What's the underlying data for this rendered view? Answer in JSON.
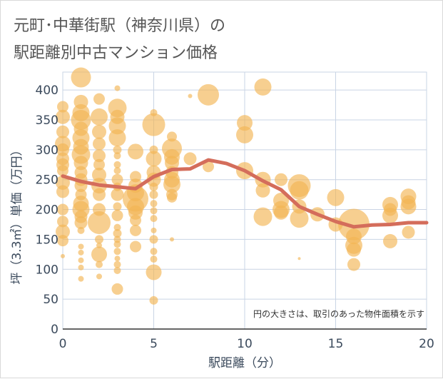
{
  "chart_data": {
    "type": "scatter",
    "title_lines": [
      "元町･中華街駅（神奈川県）の",
      "駅距離別中古マンション価格"
    ],
    "xlabel": "駅距離（分）",
    "ylabel": "坪（3.3㎡）単価（万円）",
    "xlim": [
      0,
      20
    ],
    "ylim": [
      0,
      430
    ],
    "x_ticks": [
      "0",
      "5",
      "10",
      "15",
      "20"
    ],
    "y_ticks": [
      "0",
      "50",
      "100",
      "150",
      "200",
      "250",
      "300",
      "350",
      "400"
    ],
    "x_tick_values": [
      0,
      5,
      10,
      15,
      20
    ],
    "y_tick_values": [
      0,
      50,
      100,
      150,
      200,
      250,
      300,
      350,
      400
    ],
    "grid": true,
    "annotation": "円の大きさは、取引のあった物件面積を示す",
    "bubble_color": "#f2b554",
    "line_color": "#d46d5b",
    "bubbles": [
      {
        "x": 0,
        "y": 372,
        "s": 8
      },
      {
        "x": 0,
        "y": 355,
        "s": 10
      },
      {
        "x": 0,
        "y": 330,
        "s": 9
      },
      {
        "x": 0,
        "y": 310,
        "s": 11
      },
      {
        "x": 0,
        "y": 300,
        "s": 9
      },
      {
        "x": 0,
        "y": 285,
        "s": 9
      },
      {
        "x": 0,
        "y": 275,
        "s": 9
      },
      {
        "x": 0,
        "y": 265,
        "s": 8
      },
      {
        "x": 0,
        "y": 245,
        "s": 10
      },
      {
        "x": 0,
        "y": 230,
        "s": 9
      },
      {
        "x": 0,
        "y": 200,
        "s": 8
      },
      {
        "x": 0,
        "y": 180,
        "s": 8
      },
      {
        "x": 0,
        "y": 163,
        "s": 10
      },
      {
        "x": 0,
        "y": 148,
        "s": 8
      },
      {
        "x": 0,
        "y": 122,
        "s": 3
      },
      {
        "x": 1,
        "y": 421,
        "s": 14
      },
      {
        "x": 1,
        "y": 380,
        "s": 10
      },
      {
        "x": 1,
        "y": 362,
        "s": 12
      },
      {
        "x": 1,
        "y": 350,
        "s": 14
      },
      {
        "x": 1,
        "y": 335,
        "s": 10
      },
      {
        "x": 1,
        "y": 320,
        "s": 12
      },
      {
        "x": 1,
        "y": 305,
        "s": 11
      },
      {
        "x": 1,
        "y": 292,
        "s": 13
      },
      {
        "x": 1,
        "y": 278,
        "s": 10
      },
      {
        "x": 1,
        "y": 262,
        "s": 9
      },
      {
        "x": 1,
        "y": 250,
        "s": 9
      },
      {
        "x": 1,
        "y": 240,
        "s": 9
      },
      {
        "x": 1,
        "y": 225,
        "s": 8
      },
      {
        "x": 1,
        "y": 210,
        "s": 11
      },
      {
        "x": 1,
        "y": 200,
        "s": 12
      },
      {
        "x": 1,
        "y": 188,
        "s": 9
      },
      {
        "x": 1,
        "y": 178,
        "s": 9
      },
      {
        "x": 1,
        "y": 165,
        "s": 5
      },
      {
        "x": 1,
        "y": 138,
        "s": 4
      },
      {
        "x": 1,
        "y": 128,
        "s": 4
      },
      {
        "x": 1,
        "y": 115,
        "s": 4
      },
      {
        "x": 1,
        "y": 103,
        "s": 4
      },
      {
        "x": 1,
        "y": 84,
        "s": 4
      },
      {
        "x": 2,
        "y": 385,
        "s": 8
      },
      {
        "x": 2,
        "y": 355,
        "s": 12
      },
      {
        "x": 2,
        "y": 330,
        "s": 10
      },
      {
        "x": 2,
        "y": 310,
        "s": 9
      },
      {
        "x": 2,
        "y": 290,
        "s": 9
      },
      {
        "x": 2,
        "y": 275,
        "s": 8
      },
      {
        "x": 2,
        "y": 258,
        "s": 10
      },
      {
        "x": 2,
        "y": 240,
        "s": 11
      },
      {
        "x": 2,
        "y": 225,
        "s": 9
      },
      {
        "x": 2,
        "y": 200,
        "s": 9
      },
      {
        "x": 2,
        "y": 178,
        "s": 16
      },
      {
        "x": 2,
        "y": 150,
        "s": 6
      },
      {
        "x": 2,
        "y": 140,
        "s": 4
      },
      {
        "x": 2,
        "y": 125,
        "s": 11
      },
      {
        "x": 2,
        "y": 108,
        "s": 5
      },
      {
        "x": 2,
        "y": 88,
        "s": 4
      },
      {
        "x": 3,
        "y": 403,
        "s": 4
      },
      {
        "x": 3,
        "y": 370,
        "s": 13
      },
      {
        "x": 3,
        "y": 355,
        "s": 10
      },
      {
        "x": 3,
        "y": 340,
        "s": 12
      },
      {
        "x": 3,
        "y": 320,
        "s": 12
      },
      {
        "x": 3,
        "y": 300,
        "s": 6
      },
      {
        "x": 3,
        "y": 290,
        "s": 5
      },
      {
        "x": 3,
        "y": 275,
        "s": 5
      },
      {
        "x": 3,
        "y": 265,
        "s": 5
      },
      {
        "x": 3,
        "y": 250,
        "s": 8
      },
      {
        "x": 3,
        "y": 238,
        "s": 6
      },
      {
        "x": 3,
        "y": 225,
        "s": 9
      },
      {
        "x": 3,
        "y": 205,
        "s": 6
      },
      {
        "x": 3,
        "y": 190,
        "s": 8
      },
      {
        "x": 3,
        "y": 170,
        "s": 5
      },
      {
        "x": 3,
        "y": 160,
        "s": 6
      },
      {
        "x": 3,
        "y": 150,
        "s": 5
      },
      {
        "x": 3,
        "y": 142,
        "s": 5
      },
      {
        "x": 3,
        "y": 130,
        "s": 5
      },
      {
        "x": 3,
        "y": 118,
        "s": 4
      },
      {
        "x": 3,
        "y": 108,
        "s": 5
      },
      {
        "x": 3,
        "y": 98,
        "s": 5
      },
      {
        "x": 3,
        "y": 67,
        "s": 8
      },
      {
        "x": 4,
        "y": 297,
        "s": 11
      },
      {
        "x": 4,
        "y": 255,
        "s": 8
      },
      {
        "x": 4,
        "y": 240,
        "s": 10
      },
      {
        "x": 4,
        "y": 228,
        "s": 12
      },
      {
        "x": 4,
        "y": 218,
        "s": 18
      },
      {
        "x": 4,
        "y": 205,
        "s": 12
      },
      {
        "x": 4,
        "y": 195,
        "s": 10
      },
      {
        "x": 4,
        "y": 182,
        "s": 8
      },
      {
        "x": 4,
        "y": 165,
        "s": 8
      },
      {
        "x": 4,
        "y": 138,
        "s": 8
      },
      {
        "x": 5,
        "y": 362,
        "s": 5
      },
      {
        "x": 5,
        "y": 342,
        "s": 16
      },
      {
        "x": 5,
        "y": 300,
        "s": 6
      },
      {
        "x": 5,
        "y": 285,
        "s": 11
      },
      {
        "x": 5,
        "y": 262,
        "s": 10
      },
      {
        "x": 5,
        "y": 250,
        "s": 10
      },
      {
        "x": 5,
        "y": 238,
        "s": 6
      },
      {
        "x": 5,
        "y": 225,
        "s": 6
      },
      {
        "x": 5,
        "y": 210,
        "s": 5
      },
      {
        "x": 5,
        "y": 198,
        "s": 5
      },
      {
        "x": 5,
        "y": 185,
        "s": 5
      },
      {
        "x": 5,
        "y": 165,
        "s": 4
      },
      {
        "x": 5,
        "y": 150,
        "s": 6
      },
      {
        "x": 5,
        "y": 130,
        "s": 5
      },
      {
        "x": 5,
        "y": 117,
        "s": 5
      },
      {
        "x": 5,
        "y": 95,
        "s": 11
      },
      {
        "x": 5,
        "y": 48,
        "s": 6
      },
      {
        "x": 6,
        "y": 322,
        "s": 7
      },
      {
        "x": 6,
        "y": 302,
        "s": 14
      },
      {
        "x": 6,
        "y": 288,
        "s": 11
      },
      {
        "x": 6,
        "y": 278,
        "s": 10
      },
      {
        "x": 6,
        "y": 262,
        "s": 9
      },
      {
        "x": 6,
        "y": 250,
        "s": 11
      },
      {
        "x": 6,
        "y": 242,
        "s": 12
      },
      {
        "x": 6,
        "y": 225,
        "s": 8
      },
      {
        "x": 6,
        "y": 220,
        "s": 7
      },
      {
        "x": 6,
        "y": 150,
        "s": 3
      },
      {
        "x": 7,
        "y": 390,
        "s": 3
      },
      {
        "x": 7,
        "y": 285,
        "s": 9
      },
      {
        "x": 8,
        "y": 392,
        "s": 15
      },
      {
        "x": 8,
        "y": 272,
        "s": 8
      },
      {
        "x": 10,
        "y": 345,
        "s": 11
      },
      {
        "x": 10,
        "y": 325,
        "s": 12
      },
      {
        "x": 10,
        "y": 265,
        "s": 12
      },
      {
        "x": 11,
        "y": 405,
        "s": 12
      },
      {
        "x": 11,
        "y": 250,
        "s": 11
      },
      {
        "x": 11,
        "y": 232,
        "s": 10
      },
      {
        "x": 11,
        "y": 188,
        "s": 13
      },
      {
        "x": 12,
        "y": 250,
        "s": 9
      },
      {
        "x": 12,
        "y": 215,
        "s": 11
      },
      {
        "x": 12,
        "y": 200,
        "s": 12
      },
      {
        "x": 12,
        "y": 195,
        "s": 10
      },
      {
        "x": 13,
        "y": 240,
        "s": 16
      },
      {
        "x": 13,
        "y": 232,
        "s": 13
      },
      {
        "x": 13,
        "y": 205,
        "s": 10
      },
      {
        "x": 13,
        "y": 185,
        "s": 13
      },
      {
        "x": 13,
        "y": 118,
        "s": 2
      },
      {
        "x": 14,
        "y": 192,
        "s": 10
      },
      {
        "x": 15,
        "y": 220,
        "s": 12
      },
      {
        "x": 15,
        "y": 175,
        "s": 10
      },
      {
        "x": 16,
        "y": 175,
        "s": 22
      },
      {
        "x": 16,
        "y": 155,
        "s": 11
      },
      {
        "x": 16,
        "y": 140,
        "s": 12
      },
      {
        "x": 16,
        "y": 133,
        "s": 10
      },
      {
        "x": 16,
        "y": 108,
        "s": 9
      },
      {
        "x": 18,
        "y": 208,
        "s": 11
      },
      {
        "x": 18,
        "y": 200,
        "s": 9
      },
      {
        "x": 18,
        "y": 190,
        "s": 11
      },
      {
        "x": 18,
        "y": 147,
        "s": 10
      },
      {
        "x": 19,
        "y": 222,
        "s": 11
      },
      {
        "x": 19,
        "y": 212,
        "s": 10
      },
      {
        "x": 19,
        "y": 205,
        "s": 11
      },
      {
        "x": 19,
        "y": 162,
        "s": 9
      }
    ],
    "series": [
      {
        "x": [
          0,
          1,
          2,
          3,
          4,
          5,
          6,
          7,
          8,
          9,
          10,
          11,
          12,
          13,
          14,
          15,
          16,
          17,
          18,
          19,
          20
        ],
        "values": [
          256,
          247,
          241,
          238,
          235,
          255,
          267,
          268,
          283,
          277,
          265,
          248,
          233,
          205,
          192,
          180,
          171,
          174,
          175,
          178,
          178
        ]
      }
    ]
  }
}
